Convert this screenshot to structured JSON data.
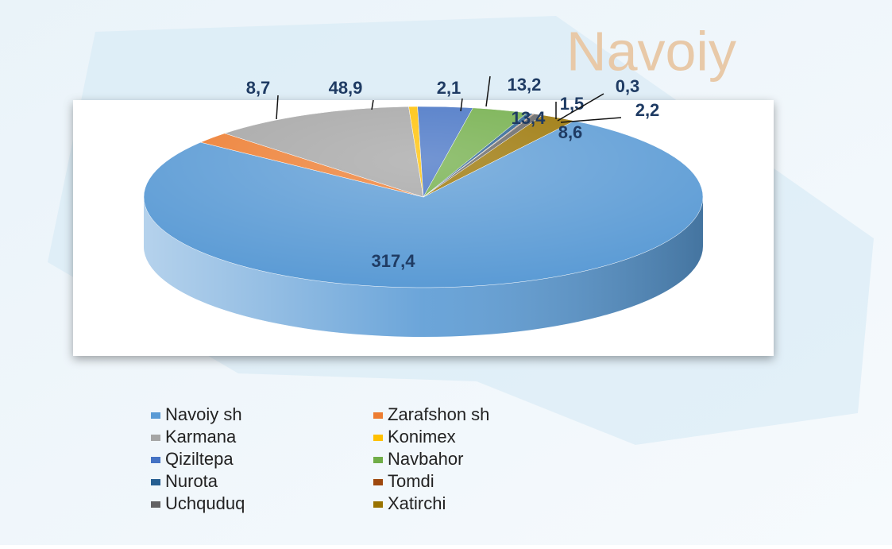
{
  "chart_data": {
    "type": "pie",
    "background_text": "Navoiy",
    "categories": [
      "Navoiy sh",
      "Zarafshon sh",
      "Karmana",
      "Konimex",
      "Qiziltepa",
      "Navbahor",
      "Nurota",
      "Tomdi",
      "Uchquduq",
      "Xatirchi"
    ],
    "values": [
      317.4,
      8.7,
      48.9,
      2.1,
      13.2,
      13.4,
      1.5,
      0.3,
      2.2,
      8.6
    ],
    "value_labels": [
      "317,4",
      "8,7",
      "48,9",
      "2,1",
      "13,2",
      "13,4",
      "1,5",
      "0,3",
      "2,2",
      "8,6"
    ],
    "colors": [
      "#5b9bd5",
      "#ed7d31",
      "#a5a5a5",
      "#ffc000",
      "#4472c4",
      "#70ad47",
      "#255e91",
      "#9e480e",
      "#636363",
      "#997300"
    ],
    "legend": "bottom"
  }
}
